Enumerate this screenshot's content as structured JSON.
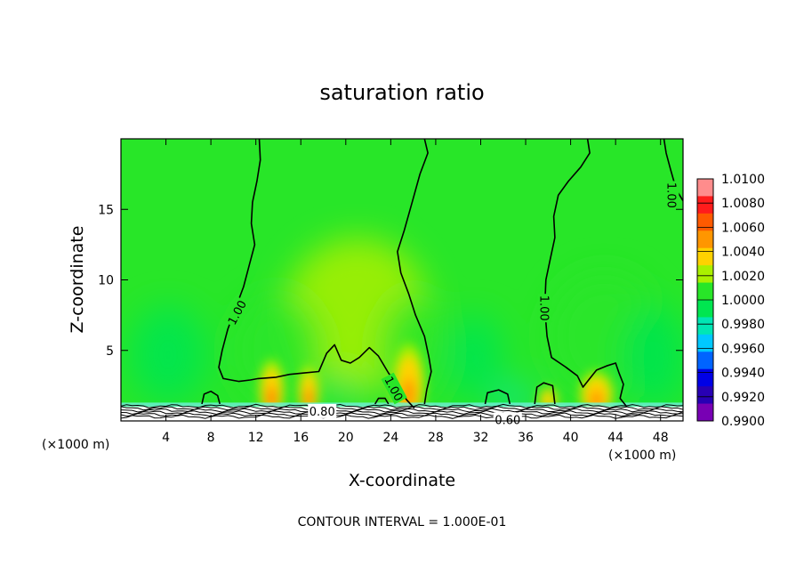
{
  "chart_data": {
    "type": "heatmap",
    "title": "saturation ratio",
    "xlabel": "X-coordinate",
    "ylabel": "Z-coordinate",
    "x_unit": "(×1000 m)",
    "z_unit": "(×1000 m)",
    "xlim": [
      0,
      50
    ],
    "ylim": [
      0,
      20
    ],
    "x_ticks": [
      4,
      8,
      12,
      16,
      20,
      24,
      28,
      32,
      36,
      40,
      44,
      48
    ],
    "y_ticks": [
      5,
      10,
      15
    ],
    "colorbar": {
      "min": 0.99,
      "max": 1.01,
      "tick_values": [
        1.01,
        1.008,
        1.006,
        1.004,
        1.002,
        1.0,
        0.998,
        0.996,
        0.994,
        0.992,
        0.99
      ],
      "tick_labels": [
        "1.0100",
        "1.0080",
        "1.0060",
        "1.0040",
        "1.0020",
        "1.0000",
        "0.9980",
        "0.9960",
        "0.9940",
        "0.9920",
        "0.9900"
      ],
      "colors": [
        "#ff8c8c",
        "#ff1c1c",
        "#ff5a00",
        "#ff9600",
        "#ffd200",
        "#aaf000",
        "#28e628",
        "#00e650",
        "#00e6b4",
        "#00c8ff",
        "#0064ff",
        "#0000e6",
        "#2800b4",
        "#7800b4"
      ]
    },
    "contour_interval_text": "CONTOUR INTERVAL = 1.000E-01",
    "contour_labels": [
      {
        "text": "1.00",
        "x": 10.3,
        "z": 7.7,
        "angle": -62
      },
      {
        "text": "1.00",
        "x": 24.3,
        "z": 2.3,
        "angle": 62
      },
      {
        "text": "1.00",
        "x": 37.7,
        "z": 8.0,
        "angle": 90
      },
      {
        "text": "1.00",
        "x": 49.0,
        "z": 16.0,
        "angle": 90
      },
      {
        "text": "0.80",
        "x": 17.9,
        "z": 0.7,
        "angle": 0
      },
      {
        "text": "0.60",
        "x": 34.4,
        "z": 0.1,
        "angle": 0
      }
    ],
    "contours_1_00": [
      [
        [
          12.3,
          20
        ],
        [
          12.4,
          18.5
        ],
        [
          12.1,
          17
        ],
        [
          11.7,
          15.5
        ],
        [
          11.6,
          14
        ],
        [
          11.9,
          12.5
        ],
        [
          11.4,
          11
        ],
        [
          10.9,
          9.5
        ],
        [
          10.2,
          8
        ],
        [
          9.5,
          6.5
        ],
        [
          9.0,
          5
        ],
        [
          8.7,
          3.8
        ],
        [
          9.1,
          3.0
        ],
        [
          10.5,
          2.8
        ],
        [
          11.5,
          2.9
        ],
        [
          12.2,
          3.0
        ],
        [
          13.8,
          3.1
        ],
        [
          15.0,
          3.3
        ],
        [
          16.3,
          3.4
        ],
        [
          17.6,
          3.5
        ],
        [
          18.3,
          4.8
        ],
        [
          19.0,
          5.4
        ],
        [
          19.6,
          4.3
        ],
        [
          20.4,
          4.1
        ],
        [
          21.2,
          4.5
        ],
        [
          22.1,
          5.2
        ],
        [
          22.9,
          4.6
        ],
        [
          23.8,
          3.4
        ],
        [
          24.7,
          2.4
        ],
        [
          25.4,
          1.5
        ],
        [
          26.1,
          0.9
        ]
      ],
      [
        [
          27.0,
          20
        ],
        [
          27.3,
          19
        ],
        [
          26.6,
          17.5
        ],
        [
          25.9,
          15.5
        ],
        [
          25.2,
          13.5
        ],
        [
          24.6,
          12
        ],
        [
          24.9,
          10.5
        ],
        [
          25.6,
          9
        ],
        [
          26.2,
          7.5
        ],
        [
          27.0,
          6
        ],
        [
          27.4,
          4.5
        ],
        [
          27.6,
          3.5
        ],
        [
          27.2,
          2.2
        ],
        [
          27.0,
          1.2
        ]
      ],
      [
        [
          41.5,
          20
        ],
        [
          41.7,
          19
        ],
        [
          40.9,
          18
        ],
        [
          39.8,
          17
        ],
        [
          38.9,
          16
        ],
        [
          38.5,
          14.5
        ],
        [
          38.6,
          13
        ],
        [
          38.2,
          11.5
        ],
        [
          37.8,
          10
        ],
        [
          37.7,
          8
        ],
        [
          37.9,
          6
        ],
        [
          38.3,
          4.5
        ],
        [
          39.6,
          3.8
        ],
        [
          40.6,
          3.2
        ],
        [
          41.1,
          2.4
        ],
        [
          41.7,
          3.0
        ],
        [
          42.3,
          3.6
        ],
        [
          43.2,
          3.9
        ],
        [
          44.0,
          4.1
        ],
        [
          44.3,
          3.4
        ],
        [
          44.7,
          2.6
        ],
        [
          44.4,
          1.6
        ],
        [
          45.0,
          1.0
        ]
      ],
      [
        [
          48.3,
          20
        ],
        [
          48.5,
          19
        ],
        [
          48.9,
          17.8
        ],
        [
          49.4,
          16.4
        ],
        [
          50,
          15.6
        ]
      ],
      [
        [
          7.2,
          1.2
        ],
        [
          7.4,
          1.9
        ],
        [
          8.0,
          2.1
        ],
        [
          8.6,
          1.8
        ],
        [
          8.8,
          1.2
        ]
      ],
      [
        [
          32.4,
          1.2
        ],
        [
          32.6,
          2.0
        ],
        [
          33.6,
          2.2
        ],
        [
          34.4,
          1.9
        ],
        [
          34.6,
          1.2
        ]
      ],
      [
        [
          36.8,
          1.2
        ],
        [
          37.0,
          2.4
        ],
        [
          37.6,
          2.7
        ],
        [
          38.4,
          2.5
        ],
        [
          38.6,
          1.2
        ]
      ],
      [
        [
          22.6,
          1.2
        ],
        [
          22.9,
          1.6
        ],
        [
          23.5,
          1.6
        ],
        [
          23.8,
          1.2
        ]
      ]
    ],
    "colored_features": [
      {
        "type": "plume",
        "x": 13.4,
        "z": 1.3,
        "wx": 1.1,
        "wz": 2.1,
        "peak": 1.007
      },
      {
        "type": "plume",
        "x": 16.7,
        "z": 1.3,
        "wx": 0.9,
        "wz": 1.8,
        "peak": 1.0065
      },
      {
        "type": "plume",
        "x": 25.6,
        "z": 1.4,
        "wx": 1.4,
        "wz": 2.8,
        "peak": 1.0055
      },
      {
        "type": "plume",
        "x": 42.3,
        "z": 1.2,
        "wx": 1.5,
        "wz": 1.6,
        "peak": 1.006
      },
      {
        "type": "plume",
        "x": 38.0,
        "z": 1.1,
        "wx": 0.8,
        "wz": 0.9,
        "peak": 1.004
      },
      {
        "type": "haze",
        "x": 21.0,
        "z": 7.5,
        "wx": 6.5,
        "wz": 5.5,
        "peak": 1.0016
      },
      {
        "type": "haze",
        "x": 14.0,
        "z": 5.0,
        "wx": 4.0,
        "wz": 4.0,
        "peak": 1.0014
      },
      {
        "type": "haze",
        "x": 26.0,
        "z": 5.0,
        "wx": 3.0,
        "wz": 4.0,
        "peak": 1.0014
      },
      {
        "type": "haze",
        "x": 43.0,
        "z": 6.0,
        "wx": 5.0,
        "wz": 4.5,
        "peak": 1.0012
      },
      {
        "type": "dry",
        "x": 4.2,
        "z": 4.7,
        "wx": 3.4,
        "wz": 3.4,
        "peak": 0.9986
      },
      {
        "type": "dry",
        "x": 47.5,
        "z": 4.5,
        "wx": 2.8,
        "wz": 3.6,
        "peak": 0.9988
      },
      {
        "type": "dry",
        "x": 31.5,
        "z": 4.5,
        "wx": 2.5,
        "wz": 3.0,
        "peak": 0.9992
      },
      {
        "type": "dry",
        "x": 19.5,
        "z": 2.0,
        "wx": 1.5,
        "wz": 1.2,
        "peak": 0.9985
      },
      {
        "type": "dry",
        "x": 35.0,
        "z": 1.6,
        "wx": 1.5,
        "wz": 0.8,
        "peak": 0.9984
      }
    ]
  }
}
